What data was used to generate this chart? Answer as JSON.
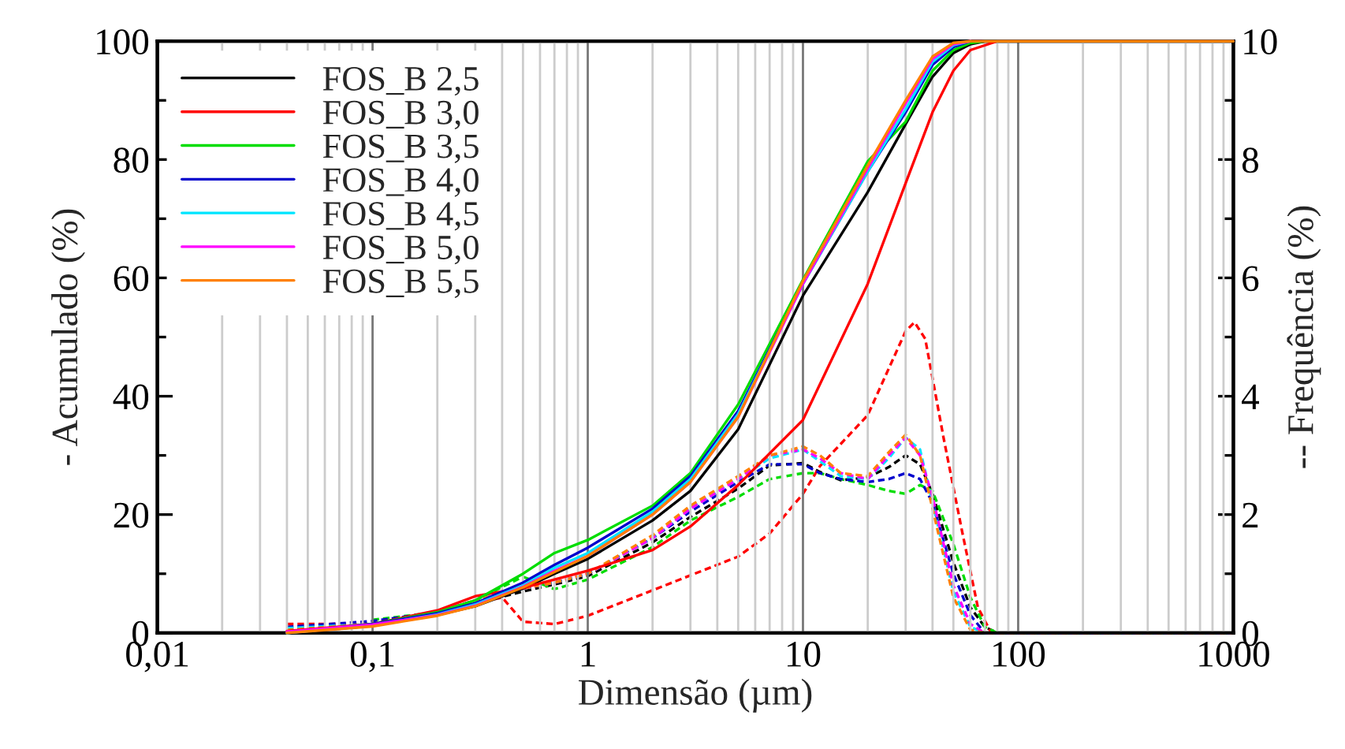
{
  "chart_data": {
    "type": "line",
    "xlabel": "Dimensão (µm)",
    "ylabel": "- Acumulado (%)",
    "y2label": "-- Frequência (%)",
    "log": "x",
    "xlim": [
      0.01,
      1000
    ],
    "xticks": [
      {
        "value": 0.01,
        "label": "0,01"
      },
      {
        "value": 0.1,
        "label": "0,1"
      },
      1,
      10,
      100,
      1000
    ],
    "ylim": [
      0,
      100
    ],
    "yticks": [
      0,
      20,
      40,
      60,
      80,
      100
    ],
    "y2lim": [
      0,
      10
    ],
    "y2ticks": [
      0,
      2,
      4,
      6,
      8,
      10
    ],
    "grid": "x",
    "legend": "top left",
    "series": [
      {
        "name": "FOS_B 2,5",
        "color": "#000000",
        "line_style": "solid",
        "x": [
          0.04,
          0.1,
          0.2,
          0.3,
          0.5,
          0.7,
          1,
          2,
          3,
          5,
          10,
          20,
          30,
          40,
          50,
          60,
          70,
          1000
        ],
        "values": [
          0,
          1.2,
          3,
          4.5,
          7.5,
          10,
          12.5,
          19,
          24,
          34.4,
          57,
          74.5,
          86,
          94,
          98,
          99.5,
          100,
          100
        ]
      },
      {
        "name": "FOS_B 3,0",
        "color": "#ff0000",
        "line_style": "solid",
        "x": [
          0.04,
          0.1,
          0.2,
          0.3,
          0.5,
          1,
          2,
          3,
          5,
          10,
          20,
          30,
          40,
          50,
          60,
          80,
          1000
        ],
        "values": [
          0.3,
          1.5,
          3.8,
          6.2,
          7.6,
          10.5,
          14,
          18,
          25,
          36,
          59,
          76,
          88,
          95,
          98.5,
          100,
          100
        ]
      },
      {
        "name": "FOS_B 3,5",
        "color": "#00dd00",
        "line_style": "solid",
        "x": [
          0.04,
          0.1,
          0.2,
          0.3,
          0.5,
          0.7,
          1,
          2,
          3,
          5,
          10,
          20,
          30,
          40,
          50,
          60,
          70,
          1000
        ],
        "values": [
          0,
          1.5,
          3.5,
          5.5,
          10,
          13.5,
          15.7,
          21.5,
          27,
          38.6,
          59.7,
          79.7,
          86.4,
          95,
          98.5,
          99.7,
          100,
          100
        ]
      },
      {
        "name": "FOS_B 4,0",
        "color": "#0000cc",
        "line_style": "solid",
        "x": [
          0.04,
          0.1,
          0.2,
          0.3,
          0.5,
          0.7,
          1,
          2,
          3,
          5,
          10,
          20,
          30,
          40,
          50,
          60,
          70,
          1000
        ],
        "values": [
          0,
          1.5,
          3.3,
          5,
          8.5,
          11.5,
          14.4,
          21,
          26.5,
          37.5,
          59,
          78,
          88,
          96,
          99,
          100,
          100,
          100
        ]
      },
      {
        "name": "FOS_B 4,5",
        "color": "#00e5ff",
        "line_style": "solid",
        "x": [
          0.04,
          0.1,
          0.2,
          0.3,
          0.5,
          0.7,
          1,
          2,
          3,
          5,
          10,
          20,
          30,
          40,
          50,
          60
        ],
        "values": [
          0,
          1.3,
          3.1,
          4.8,
          8,
          11,
          13.5,
          20.5,
          26,
          37,
          59,
          78,
          88.5,
          96.5,
          99.3,
          100
        ]
      },
      {
        "name": "FOS_B 5,0",
        "color": "#ff00ff",
        "line_style": "solid",
        "x": [
          0.04,
          0.1,
          0.2,
          0.3,
          0.5,
          0.7,
          1,
          2,
          3,
          5,
          10,
          20,
          30,
          40,
          50,
          60
        ],
        "values": [
          0.2,
          1.4,
          3,
          4.6,
          7.8,
          10.5,
          13,
          20,
          25.5,
          36.5,
          59,
          78.5,
          89.5,
          97,
          99.5,
          100
        ]
      },
      {
        "name": "FOS_B 5,5",
        "color": "#ff8000",
        "line_style": "solid",
        "x": [
          0.04,
          0.1,
          0.2,
          0.3,
          0.5,
          0.7,
          1,
          2,
          3,
          5,
          10,
          20,
          30,
          40,
          50,
          60,
          70,
          1000
        ],
        "values": [
          0,
          1.1,
          2.9,
          4.5,
          7.7,
          10.3,
          13,
          20,
          25.5,
          36.5,
          59.5,
          79,
          90,
          97.4,
          99.7,
          100,
          100,
          100
        ]
      },
      {
        "color": "#000000",
        "line_style": "dashed",
        "axis": "y2",
        "x": [
          0.04,
          0.1,
          0.2,
          0.3,
          0.5,
          0.7,
          1,
          2,
          3,
          5,
          7,
          10,
          12,
          15,
          20,
          25,
          30,
          35,
          40,
          50,
          60,
          70,
          80,
          1000
        ],
        "values": [
          0.05,
          0.15,
          0.35,
          0.5,
          0.7,
          0.82,
          0.96,
          1.53,
          1.96,
          2.44,
          2.83,
          2.87,
          2.72,
          2.58,
          2.63,
          2.8,
          3.0,
          2.85,
          2.35,
          1.19,
          0.43,
          0.1,
          0,
          0
        ]
      },
      {
        "color": "#ff0000",
        "line_style": "dashed",
        "axis": "y2",
        "x": [
          0.04,
          0.1,
          0.2,
          0.3,
          0.4,
          0.5,
          0.7,
          1,
          2,
          5,
          7,
          10,
          12,
          20,
          30,
          33,
          37,
          45,
          55,
          65,
          75,
          1000
        ],
        "values": [
          0.15,
          0.15,
          0.35,
          0.5,
          0.6,
          0.19,
          0.15,
          0.29,
          0.72,
          1.29,
          1.68,
          2.35,
          2.82,
          3.68,
          5.1,
          5.25,
          4.97,
          3.3,
          1.7,
          0.43,
          0,
          0
        ]
      },
      {
        "color": "#00dd00",
        "line_style": "dashed",
        "axis": "y2",
        "x": [
          0.1,
          0.2,
          0.3,
          0.5,
          0.7,
          1,
          2,
          3,
          5,
          7,
          10,
          12,
          15,
          20,
          25,
          30,
          35,
          40,
          50,
          60,
          70,
          80,
          1000
        ],
        "values": [
          0.22,
          0.35,
          0.55,
          0.95,
          0.74,
          0.9,
          1.45,
          1.9,
          2.3,
          2.6,
          2.7,
          2.7,
          2.6,
          2.5,
          2.4,
          2.35,
          2.5,
          2.4,
          1.5,
          0.6,
          0.1,
          0,
          0
        ]
      },
      {
        "color": "#0000cc",
        "line_style": "dashed",
        "axis": "y2",
        "x": [
          0.04,
          0.1,
          0.2,
          0.3,
          0.5,
          0.7,
          1,
          2,
          3,
          5,
          7,
          10,
          12,
          15,
          20,
          25,
          30,
          35,
          40,
          50,
          60,
          70,
          80,
          1000
        ],
        "values": [
          0.1,
          0.2,
          0.35,
          0.55,
          0.75,
          0.85,
          1.0,
          1.6,
          2.05,
          2.55,
          2.85,
          2.85,
          2.7,
          2.6,
          2.55,
          2.6,
          2.7,
          2.6,
          2.2,
          1.0,
          0.3,
          0,
          0,
          0
        ]
      },
      {
        "color": "#00e5ff",
        "line_style": "dashed",
        "axis": "y2",
        "x": [
          0.04,
          0.1,
          0.2,
          0.3,
          0.5,
          0.7,
          1,
          2,
          3,
          5,
          7,
          10,
          12,
          15,
          20,
          25,
          30,
          35,
          40,
          50,
          60,
          70,
          80,
          1000
        ],
        "values": [
          0.08,
          0.15,
          0.35,
          0.55,
          0.75,
          0.85,
          1.0,
          1.6,
          2.1,
          2.6,
          2.95,
          3.1,
          2.9,
          2.65,
          2.6,
          2.95,
          3.3,
          3.1,
          2.2,
          0.7,
          0.1,
          0,
          0,
          0
        ]
      },
      {
        "color": "#ff00ff",
        "line_style": "dashed",
        "axis": "y2",
        "x": [
          0.04,
          0.1,
          0.2,
          0.3,
          0.5,
          0.7,
          1,
          2,
          3,
          5,
          7,
          10,
          12,
          15,
          20,
          25,
          30,
          35,
          40,
          50,
          60,
          70,
          80,
          1000
        ],
        "values": [
          0,
          0.15,
          0.35,
          0.55,
          0.75,
          0.85,
          1.0,
          1.6,
          2.1,
          2.6,
          3.0,
          3.1,
          2.95,
          2.7,
          2.6,
          3.0,
          3.3,
          3.0,
          2.3,
          0.8,
          0.15,
          0,
          0,
          0
        ]
      },
      {
        "color": "#ff8000",
        "line_style": "dashed",
        "axis": "y2",
        "x": [
          0.04,
          0.1,
          0.2,
          0.3,
          0.5,
          0.7,
          1,
          2,
          3,
          5,
          7,
          10,
          12,
          15,
          20,
          25,
          30,
          35,
          40,
          50,
          60,
          70,
          80,
          1000
        ],
        "values": [
          0.05,
          0.15,
          0.35,
          0.55,
          0.75,
          0.85,
          1.0,
          1.65,
          2.15,
          2.65,
          3.0,
          3.15,
          3.0,
          2.7,
          2.65,
          3.05,
          3.35,
          3.0,
          2.1,
          0.6,
          0.05,
          0,
          0,
          0
        ]
      }
    ]
  }
}
